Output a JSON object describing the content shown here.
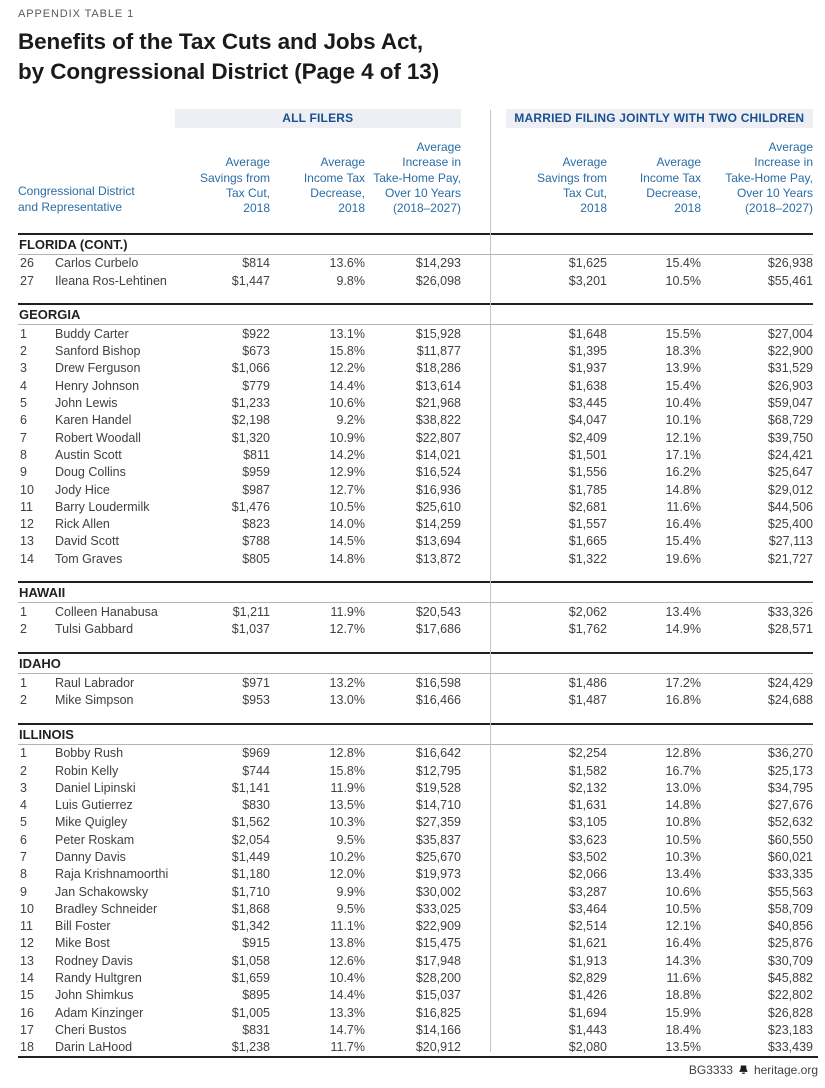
{
  "header": {
    "eyebrow": "APPENDIX TABLE 1",
    "title": "Benefits of the Tax Cuts and Jobs Act,\nby Congressional District (Page 4 of 13)"
  },
  "table": {
    "row_axis_label": "Congressional District\nand Representative",
    "group_all": "ALL FILERS",
    "group_married": "MARRIED FILING JOINTLY WITH TWO CHILDREN",
    "columns": [
      "Average\nSavings from\nTax Cut,\n2018",
      "Average\nIncome Tax\nDecrease,\n2018",
      "Average\nIncrease in\nTake-Home Pay,\nOver 10 Years\n(2018–2027)"
    ],
    "sections": [
      {
        "state": "FLORIDA (CONT.)",
        "rows": [
          {
            "district": "26",
            "name": "Carlos Curbelo",
            "values": [
              "$814",
              "13.6%",
              "$14,293",
              "$1,625",
              "15.4%",
              "$26,938"
            ]
          },
          {
            "district": "27",
            "name": "Ileana Ros-Lehtinen",
            "values": [
              "$1,447",
              "9.8%",
              "$26,098",
              "$3,201",
              "10.5%",
              "$55,461"
            ]
          }
        ]
      },
      {
        "state": "GEORGIA",
        "rows": [
          {
            "district": "1",
            "name": "Buddy Carter",
            "values": [
              "$922",
              "13.1%",
              "$15,928",
              "$1,648",
              "15.5%",
              "$27,004"
            ]
          },
          {
            "district": "2",
            "name": "Sanford Bishop",
            "values": [
              "$673",
              "15.8%",
              "$11,877",
              "$1,395",
              "18.3%",
              "$22,900"
            ]
          },
          {
            "district": "3",
            "name": "Drew Ferguson",
            "values": [
              "$1,066",
              "12.2%",
              "$18,286",
              "$1,937",
              "13.9%",
              "$31,529"
            ]
          },
          {
            "district": "4",
            "name": "Henry Johnson",
            "values": [
              "$779",
              "14.4%",
              "$13,614",
              "$1,638",
              "15.4%",
              "$26,903"
            ]
          },
          {
            "district": "5",
            "name": "John Lewis",
            "values": [
              "$1,233",
              "10.6%",
              "$21,968",
              "$3,445",
              "10.4%",
              "$59,047"
            ]
          },
          {
            "district": "6",
            "name": "Karen Handel",
            "values": [
              "$2,198",
              "9.2%",
              "$38,822",
              "$4,047",
              "10.1%",
              "$68,729"
            ]
          },
          {
            "district": "7",
            "name": "Robert Woodall",
            "values": [
              "$1,320",
              "10.9%",
              "$22,807",
              "$2,409",
              "12.1%",
              "$39,750"
            ]
          },
          {
            "district": "8",
            "name": "Austin Scott",
            "values": [
              "$811",
              "14.2%",
              "$14,021",
              "$1,501",
              "17.1%",
              "$24,421"
            ]
          },
          {
            "district": "9",
            "name": "Doug Collins",
            "values": [
              "$959",
              "12.9%",
              "$16,524",
              "$1,556",
              "16.2%",
              "$25,647"
            ]
          },
          {
            "district": "10",
            "name": "Jody Hice",
            "values": [
              "$987",
              "12.7%",
              "$16,936",
              "$1,785",
              "14.8%",
              "$29,012"
            ]
          },
          {
            "district": "11",
            "name": "Barry Loudermilk",
            "values": [
              "$1,476",
              "10.5%",
              "$25,610",
              "$2,681",
              "11.6%",
              "$44,506"
            ]
          },
          {
            "district": "12",
            "name": "Rick Allen",
            "values": [
              "$823",
              "14.0%",
              "$14,259",
              "$1,557",
              "16.4%",
              "$25,400"
            ]
          },
          {
            "district": "13",
            "name": "David Scott",
            "values": [
              "$788",
              "14.5%",
              "$13,694",
              "$1,665",
              "15.4%",
              "$27,113"
            ]
          },
          {
            "district": "14",
            "name": "Tom Graves",
            "values": [
              "$805",
              "14.8%",
              "$13,872",
              "$1,322",
              "19.6%",
              "$21,727"
            ]
          }
        ]
      },
      {
        "state": "HAWAII",
        "rows": [
          {
            "district": "1",
            "name": "Colleen Hanabusa",
            "values": [
              "$1,211",
              "11.9%",
              "$20,543",
              "$2,062",
              "13.4%",
              "$33,326"
            ]
          },
          {
            "district": "2",
            "name": "Tulsi Gabbard",
            "values": [
              "$1,037",
              "12.7%",
              "$17,686",
              "$1,762",
              "14.9%",
              "$28,571"
            ]
          }
        ]
      },
      {
        "state": "IDAHO",
        "rows": [
          {
            "district": "1",
            "name": "Raul Labrador",
            "values": [
              "$971",
              "13.2%",
              "$16,598",
              "$1,486",
              "17.2%",
              "$24,429"
            ]
          },
          {
            "district": "2",
            "name": "Mike Simpson",
            "values": [
              "$953",
              "13.0%",
              "$16,466",
              "$1,487",
              "16.8%",
              "$24,688"
            ]
          }
        ]
      },
      {
        "state": "ILLINOIS",
        "rows": [
          {
            "district": "1",
            "name": "Bobby Rush",
            "values": [
              "$969",
              "12.8%",
              "$16,642",
              "$2,254",
              "12.8%",
              "$36,270"
            ]
          },
          {
            "district": "2",
            "name": "Robin Kelly",
            "values": [
              "$744",
              "15.8%",
              "$12,795",
              "$1,582",
              "16.7%",
              "$25,173"
            ]
          },
          {
            "district": "3",
            "name": "Daniel Lipinski",
            "values": [
              "$1,141",
              "11.9%",
              "$19,528",
              "$2,132",
              "13.0%",
              "$34,795"
            ]
          },
          {
            "district": "4",
            "name": "Luis Gutierrez",
            "values": [
              "$830",
              "13.5%",
              "$14,710",
              "$1,631",
              "14.8%",
              "$27,676"
            ]
          },
          {
            "district": "5",
            "name": "Mike Quigley",
            "values": [
              "$1,562",
              "10.3%",
              "$27,359",
              "$3,105",
              "10.8%",
              "$52,632"
            ]
          },
          {
            "district": "6",
            "name": "Peter Roskam",
            "values": [
              "$2,054",
              "9.5%",
              "$35,837",
              "$3,623",
              "10.5%",
              "$60,550"
            ]
          },
          {
            "district": "7",
            "name": "Danny Davis",
            "values": [
              "$1,449",
              "10.2%",
              "$25,670",
              "$3,502",
              "10.3%",
              "$60,021"
            ]
          },
          {
            "district": "8",
            "name": "Raja Krishnamoorthi",
            "values": [
              "$1,180",
              "12.0%",
              "$19,973",
              "$2,066",
              "13.4%",
              "$33,335"
            ]
          },
          {
            "district": "9",
            "name": "Jan Schakowsky",
            "values": [
              "$1,710",
              "9.9%",
              "$30,002",
              "$3,287",
              "10.6%",
              "$55,563"
            ]
          },
          {
            "district": "10",
            "name": "Bradley Schneider",
            "values": [
              "$1,868",
              "9.5%",
              "$33,025",
              "$3,464",
              "10.5%",
              "$58,709"
            ]
          },
          {
            "district": "11",
            "name": "Bill Foster",
            "values": [
              "$1,342",
              "11.1%",
              "$22,909",
              "$2,514",
              "12.1%",
              "$40,856"
            ]
          },
          {
            "district": "12",
            "name": "Mike Bost",
            "values": [
              "$915",
              "13.8%",
              "$15,475",
              "$1,621",
              "16.4%",
              "$25,876"
            ]
          },
          {
            "district": "13",
            "name": "Rodney Davis",
            "values": [
              "$1,058",
              "12.6%",
              "$17,948",
              "$1,913",
              "14.3%",
              "$30,709"
            ]
          },
          {
            "district": "14",
            "name": "Randy Hultgren",
            "values": [
              "$1,659",
              "10.4%",
              "$28,200",
              "$2,829",
              "11.6%",
              "$45,882"
            ]
          },
          {
            "district": "15",
            "name": "John Shimkus",
            "values": [
              "$895",
              "14.4%",
              "$15,037",
              "$1,426",
              "18.8%",
              "$22,802"
            ]
          },
          {
            "district": "16",
            "name": "Adam Kinzinger",
            "values": [
              "$1,005",
              "13.3%",
              "$16,825",
              "$1,694",
              "15.9%",
              "$26,828"
            ]
          },
          {
            "district": "17",
            "name": "Cheri Bustos",
            "values": [
              "$831",
              "14.7%",
              "$14,166",
              "$1,443",
              "18.4%",
              "$23,183"
            ]
          },
          {
            "district": "18",
            "name": "Darin LaHood",
            "values": [
              "$1,238",
              "11.7%",
              "$20,912",
              "$2,080",
              "13.5%",
              "$33,439"
            ]
          }
        ]
      }
    ]
  },
  "footer": {
    "doc_id": "BG3333",
    "site": "heritage.org",
    "logo_icon": "liberty-bell-icon"
  },
  "colors": {
    "accent_blue": "#2a6ca5",
    "band_text_blue": "#1b4f91",
    "band_background": "#edeff4",
    "text_dark": "#231f20",
    "data_text": "#414042",
    "rule_gray": "#b4b4b6"
  }
}
